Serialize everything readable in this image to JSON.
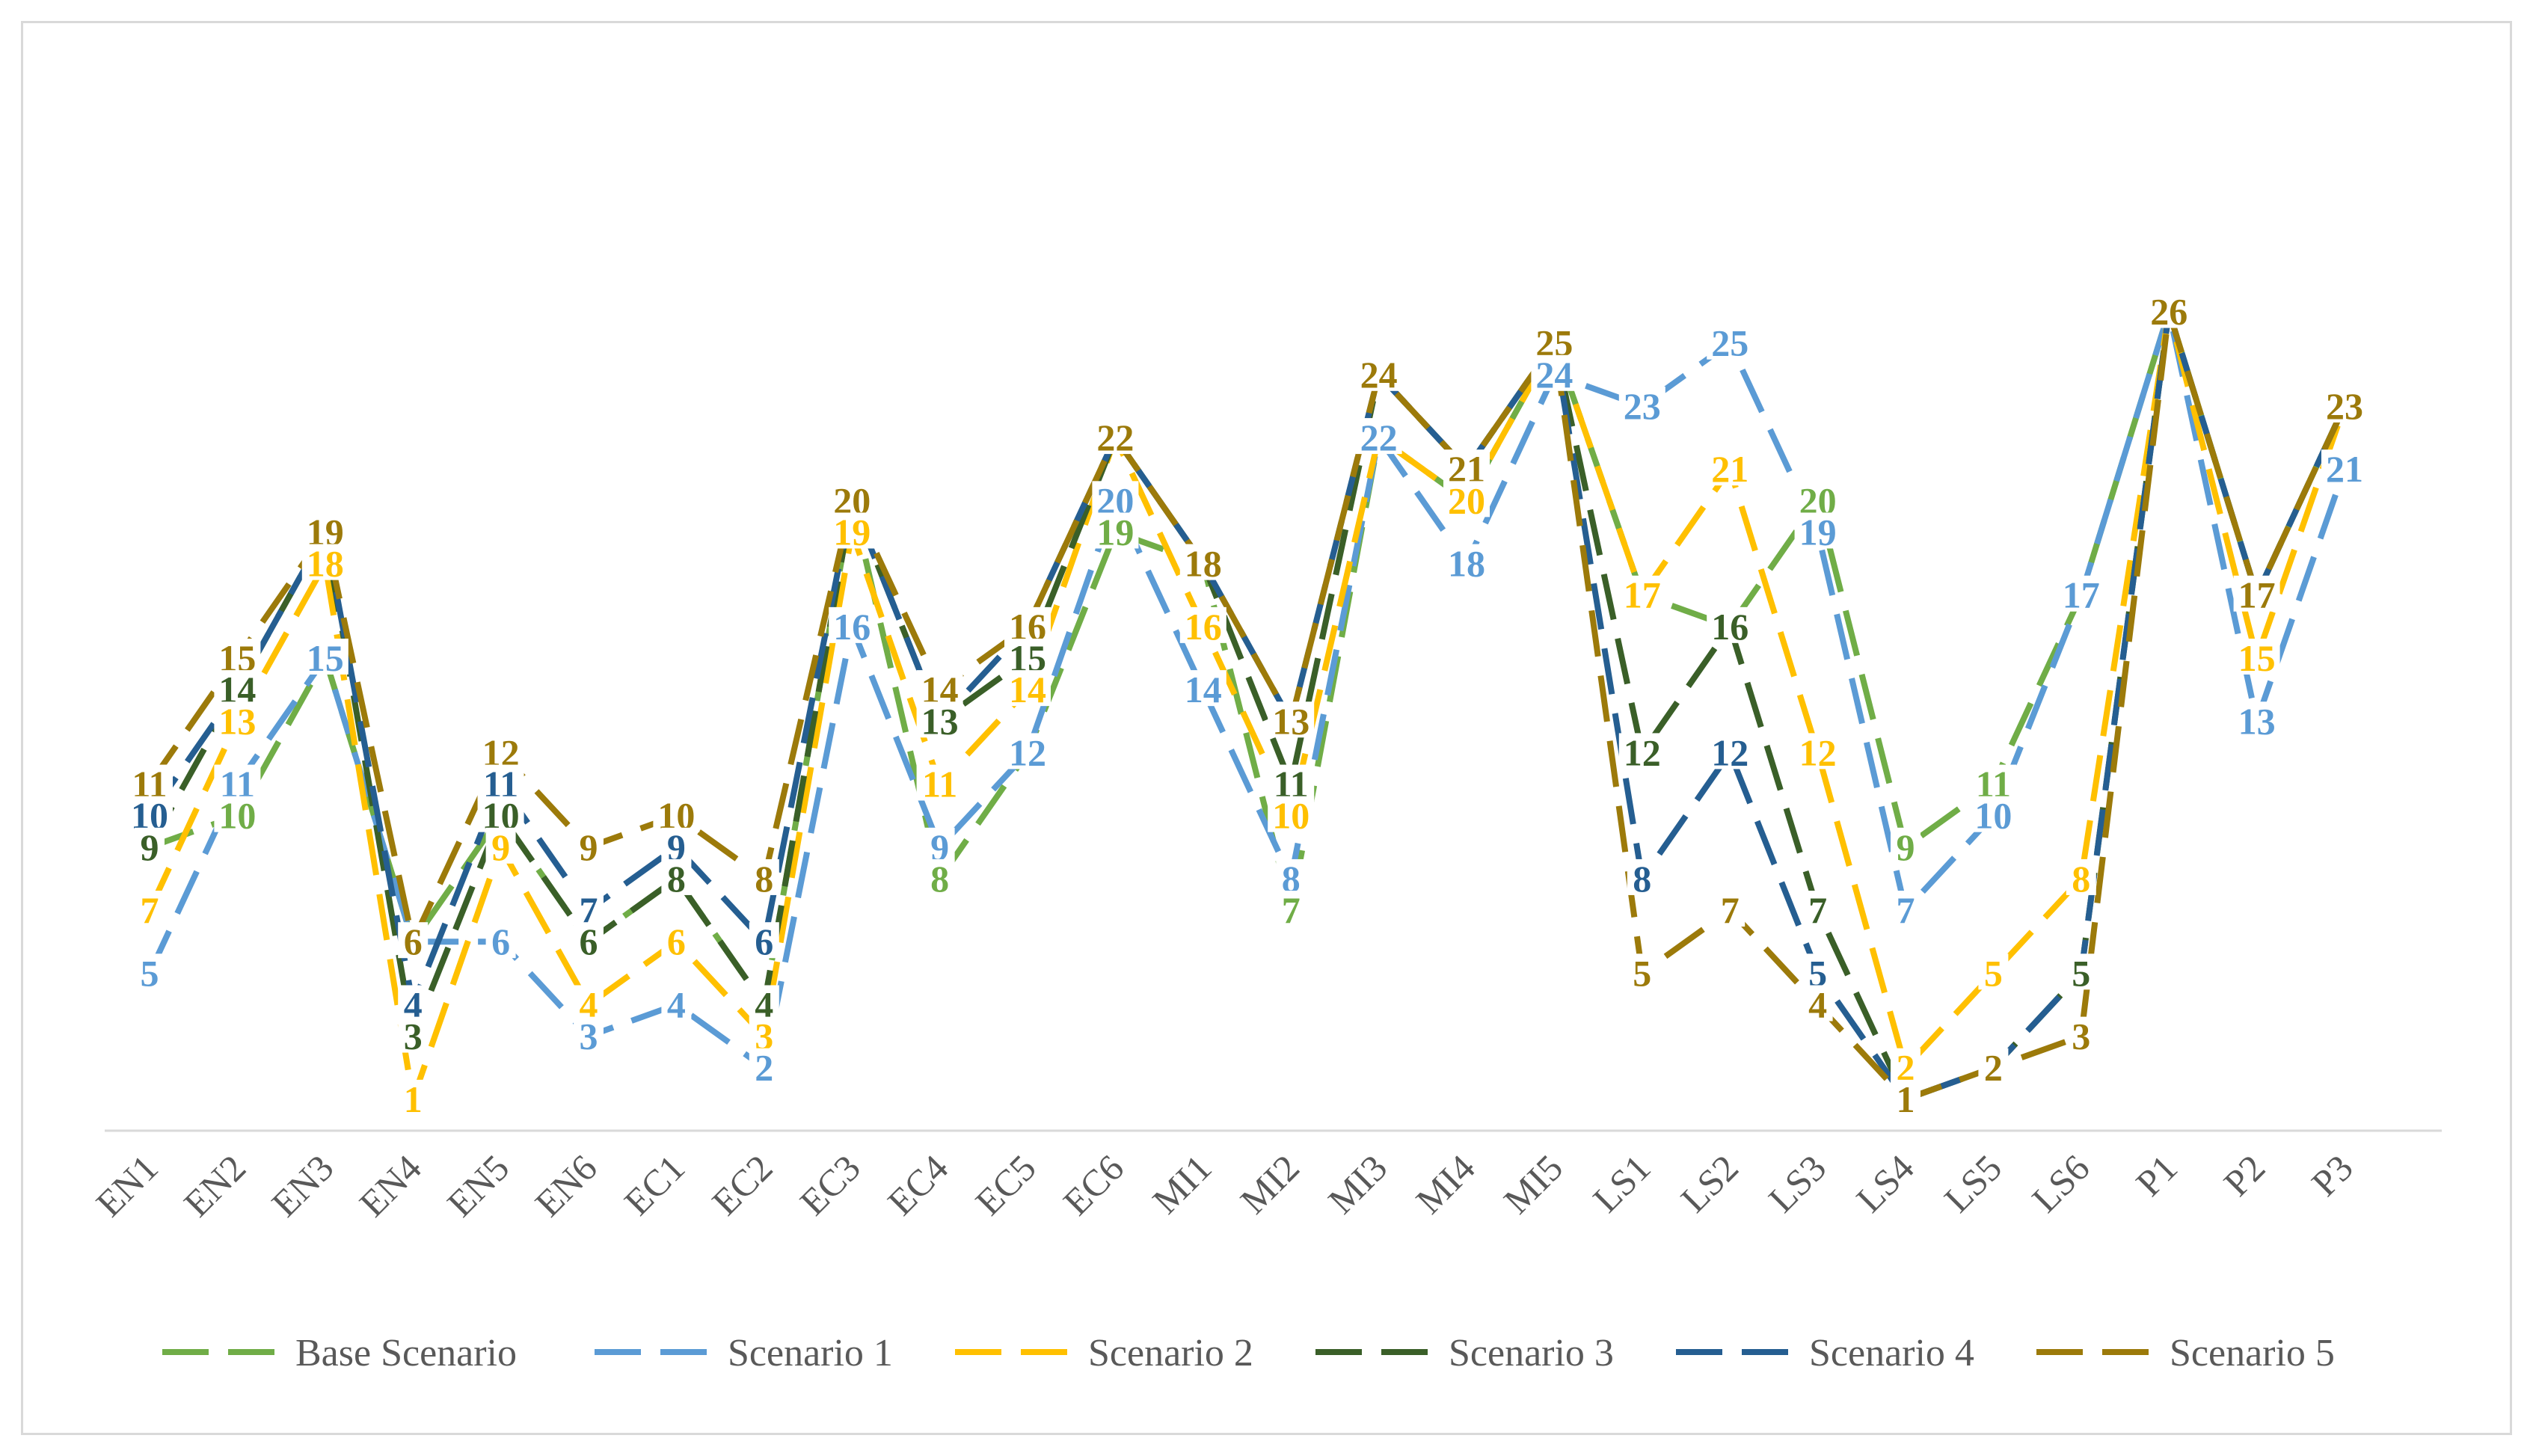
{
  "chart_data": {
    "type": "line",
    "title": "",
    "xlabel": "",
    "ylabel": "",
    "ylim": [
      0,
      30
    ],
    "grid": false,
    "legend_position": "bottom",
    "line_style": "dashed",
    "categories": [
      "EN1",
      "EN2",
      "EN3",
      "EN4",
      "EN5",
      "EN6",
      "EC1",
      "EC2",
      "EC3",
      "EC4",
      "EC5",
      "EC6",
      "MI1",
      "MI2",
      "MI3",
      "MI4",
      "MI5",
      "LS1",
      "LS2",
      "LS3",
      "LS4",
      "LS5",
      "LS6",
      "P1",
      "P2",
      "P3"
    ],
    "series": [
      {
        "name": "Base Scenario",
        "color": "#70ad47",
        "values": [
          9,
          10,
          15,
          6,
          10,
          6,
          8,
          4,
          20,
          8,
          12,
          19,
          18,
          7,
          22,
          20,
          25,
          17,
          16,
          20,
          9,
          11,
          17,
          26,
          17,
          23
        ]
      },
      {
        "name": "Scenario 1",
        "color": "#5b9bd5",
        "values": [
          5,
          11,
          15,
          6,
          6,
          3,
          4,
          2,
          16,
          9,
          12,
          20,
          14,
          8,
          22,
          18,
          24,
          23,
          25,
          19,
          7,
          10,
          17,
          26,
          13,
          21
        ]
      },
      {
        "name": "Scenario 2",
        "color": "#ffc000",
        "values": [
          7,
          13,
          18,
          1,
          9,
          4,
          6,
          3,
          19,
          11,
          14,
          22,
          16,
          10,
          22,
          20,
          25,
          17,
          21,
          12,
          2,
          5,
          8,
          26,
          15,
          23
        ]
      },
      {
        "name": "Scenario 3",
        "color": "#3a5f28",
        "values": [
          9,
          14,
          19,
          3,
          10,
          6,
          8,
          4,
          20,
          13,
          15,
          22,
          18,
          11,
          24,
          21,
          25,
          12,
          16,
          7,
          1,
          2,
          5,
          26,
          17,
          23
        ]
      },
      {
        "name": "Scenario 4",
        "color": "#255e91",
        "values": [
          10,
          14,
          19,
          4,
          11,
          7,
          9,
          6,
          20,
          13,
          16,
          22,
          18,
          13,
          24,
          21,
          25,
          8,
          12,
          5,
          1,
          2,
          5,
          26,
          17,
          23
        ]
      },
      {
        "name": "Scenario 5",
        "color": "#9c7a0a",
        "values": [
          11,
          15,
          19,
          6,
          12,
          9,
          10,
          8,
          20,
          14,
          16,
          22,
          18,
          13,
          24,
          21,
          25,
          5,
          7,
          4,
          1,
          2,
          3,
          26,
          17,
          23
        ]
      }
    ],
    "data_labels": [
      {
        "category": "EN1",
        "series": "Scenario 5",
        "text": "11"
      },
      {
        "category": "EN1",
        "series": "Scenario 4",
        "text": "10"
      },
      {
        "category": "EN1",
        "series": "Scenario 3",
        "text": "9"
      },
      {
        "category": "EN1",
        "series": "Scenario 2",
        "text": "7"
      },
      {
        "category": "EN1",
        "series": "Scenario 1",
        "text": "5"
      },
      {
        "category": "EN2",
        "series": "Scenario 5",
        "text": "15"
      },
      {
        "category": "EN2",
        "series": "Scenario 3",
        "text": "14"
      },
      {
        "category": "EN2",
        "series": "Scenario 2",
        "text": "13"
      },
      {
        "category": "EN2",
        "series": "Scenario 1",
        "text": "11"
      },
      {
        "category": "EN2",
        "series": "Base Scenario",
        "text": "10"
      },
      {
        "category": "EN3",
        "series": "Scenario 5",
        "text": "19"
      },
      {
        "category": "EN3",
        "series": "Scenario 2",
        "text": "18"
      },
      {
        "category": "EN3",
        "series": "Scenario 1",
        "text": "15"
      },
      {
        "category": "EN4",
        "series": "Scenario 5",
        "text": "6"
      },
      {
        "category": "EN4",
        "series": "Scenario 4",
        "text": "4"
      },
      {
        "category": "EN4",
        "series": "Scenario 3",
        "text": "3"
      },
      {
        "category": "EN4",
        "series": "Scenario 2",
        "text": "1"
      },
      {
        "category": "EN5",
        "series": "Scenario 5",
        "text": "12"
      },
      {
        "category": "EN5",
        "series": "Scenario 4",
        "text": "11"
      },
      {
        "category": "EN5",
        "series": "Scenario 3",
        "text": "10"
      },
      {
        "category": "EN5",
        "series": "Scenario 2",
        "text": "9"
      },
      {
        "category": "EN5",
        "series": "Scenario 1",
        "text": "6"
      },
      {
        "category": "EN6",
        "series": "Scenario 5",
        "text": "9"
      },
      {
        "category": "EN6",
        "series": "Scenario 4",
        "text": "7"
      },
      {
        "category": "EN6",
        "series": "Scenario 3",
        "text": "6"
      },
      {
        "category": "EN6",
        "series": "Scenario 2",
        "text": "4"
      },
      {
        "category": "EN6",
        "series": "Scenario 1",
        "text": "3"
      },
      {
        "category": "EC1",
        "series": "Scenario 5",
        "text": "10"
      },
      {
        "category": "EC1",
        "series": "Scenario 4",
        "text": "9"
      },
      {
        "category": "EC1",
        "series": "Scenario 3",
        "text": "8"
      },
      {
        "category": "EC1",
        "series": "Scenario 2",
        "text": "6"
      },
      {
        "category": "EC1",
        "series": "Scenario 1",
        "text": "4"
      },
      {
        "category": "EC2",
        "series": "Scenario 5",
        "text": "8"
      },
      {
        "category": "EC2",
        "series": "Scenario 4",
        "text": "6"
      },
      {
        "category": "EC2",
        "series": "Scenario 3",
        "text": "4"
      },
      {
        "category": "EC2",
        "series": "Scenario 2",
        "text": "3"
      },
      {
        "category": "EC2",
        "series": "Scenario 1",
        "text": "2"
      },
      {
        "category": "EC3",
        "series": "Scenario 5",
        "text": "20"
      },
      {
        "category": "EC3",
        "series": "Scenario 2",
        "text": "19"
      },
      {
        "category": "EC3",
        "series": "Scenario 1",
        "text": "16"
      },
      {
        "category": "EC4",
        "series": "Scenario 5",
        "text": "14"
      },
      {
        "category": "EC4",
        "series": "Scenario 3",
        "text": "13"
      },
      {
        "category": "EC4",
        "series": "Scenario 2",
        "text": "11"
      },
      {
        "category": "EC4",
        "series": "Scenario 1",
        "text": "9"
      },
      {
        "category": "EC4",
        "series": "Base Scenario",
        "text": "8"
      },
      {
        "category": "EC5",
        "series": "Scenario 5",
        "text": "16"
      },
      {
        "category": "EC5",
        "series": "Scenario 3",
        "text": "15"
      },
      {
        "category": "EC5",
        "series": "Scenario 2",
        "text": "14"
      },
      {
        "category": "EC5",
        "series": "Scenario 1",
        "text": "12"
      },
      {
        "category": "EC6",
        "series": "Scenario 5",
        "text": "22"
      },
      {
        "category": "EC6",
        "series": "Scenario 1",
        "text": "20"
      },
      {
        "category": "EC6",
        "series": "Base Scenario",
        "text": "19"
      },
      {
        "category": "MI1",
        "series": "Scenario 5",
        "text": "18"
      },
      {
        "category": "MI1",
        "series": "Scenario 2",
        "text": "16"
      },
      {
        "category": "MI1",
        "series": "Scenario 1",
        "text": "14"
      },
      {
        "category": "MI2",
        "series": "Scenario 5",
        "text": "13"
      },
      {
        "category": "MI2",
        "series": "Scenario 3",
        "text": "11"
      },
      {
        "category": "MI2",
        "series": "Scenario 2",
        "text": "10"
      },
      {
        "category": "MI2",
        "series": "Scenario 1",
        "text": "8"
      },
      {
        "category": "MI2",
        "series": "Base Scenario",
        "text": "7"
      },
      {
        "category": "MI3",
        "series": "Scenario 5",
        "text": "24"
      },
      {
        "category": "MI3",
        "series": "Scenario 1",
        "text": "22"
      },
      {
        "category": "MI4",
        "series": "Scenario 5",
        "text": "21"
      },
      {
        "category": "MI4",
        "series": "Scenario 2",
        "text": "20"
      },
      {
        "category": "MI4",
        "series": "Scenario 1",
        "text": "18"
      },
      {
        "category": "MI5",
        "series": "Scenario 5",
        "text": "25"
      },
      {
        "category": "MI5",
        "series": "Scenario 1",
        "text": "24"
      },
      {
        "category": "LS1",
        "series": "Scenario 1",
        "text": "23"
      },
      {
        "category": "LS1",
        "series": "Scenario 2",
        "text": "17"
      },
      {
        "category": "LS1",
        "series": "Scenario 3",
        "text": "12"
      },
      {
        "category": "LS1",
        "series": "Scenario 4",
        "text": "8"
      },
      {
        "category": "LS1",
        "series": "Scenario 5",
        "text": "5"
      },
      {
        "category": "LS2",
        "series": "Scenario 1",
        "text": "25"
      },
      {
        "category": "LS2",
        "series": "Scenario 2",
        "text": "21"
      },
      {
        "category": "LS2",
        "series": "Scenario 3",
        "text": "16"
      },
      {
        "category": "LS2",
        "series": "Scenario 4",
        "text": "12"
      },
      {
        "category": "LS2",
        "series": "Scenario 5",
        "text": "7"
      },
      {
        "category": "LS3",
        "series": "Base Scenario",
        "text": "20"
      },
      {
        "category": "LS3",
        "series": "Scenario 1",
        "text": "19"
      },
      {
        "category": "LS3",
        "series": "Scenario 2",
        "text": "12"
      },
      {
        "category": "LS3",
        "series": "Scenario 3",
        "text": "7"
      },
      {
        "category": "LS3",
        "series": "Scenario 4",
        "text": "5"
      },
      {
        "category": "LS3",
        "series": "Scenario 5",
        "text": "4"
      },
      {
        "category": "LS4",
        "series": "Base Scenario",
        "text": "9"
      },
      {
        "category": "LS4",
        "series": "Scenario 1",
        "text": "7"
      },
      {
        "category": "LS4",
        "series": "Scenario 2",
        "text": "2"
      },
      {
        "category": "LS4",
        "series": "Scenario 5",
        "text": "1"
      },
      {
        "category": "LS5",
        "series": "Base Scenario",
        "text": "11"
      },
      {
        "category": "LS5",
        "series": "Scenario 1",
        "text": "10"
      },
      {
        "category": "LS5",
        "series": "Scenario 2",
        "text": "5"
      },
      {
        "category": "LS5",
        "series": "Scenario 5",
        "text": "2"
      },
      {
        "category": "LS6",
        "series": "Scenario 1",
        "text": "17"
      },
      {
        "category": "LS6",
        "series": "Scenario 2",
        "text": "8"
      },
      {
        "category": "LS6",
        "series": "Scenario 3",
        "text": "5"
      },
      {
        "category": "LS6",
        "series": "Scenario 5",
        "text": "3"
      },
      {
        "category": "P1",
        "series": "Scenario 5",
        "text": "26"
      },
      {
        "category": "P2",
        "series": "Scenario 5",
        "text": "17"
      },
      {
        "category": "P2",
        "series": "Scenario 2",
        "text": "15"
      },
      {
        "category": "P2",
        "series": "Scenario 1",
        "text": "13"
      },
      {
        "category": "P3",
        "series": "Scenario 5",
        "text": "23"
      },
      {
        "category": "P3",
        "series": "Scenario 1",
        "text": "21"
      }
    ]
  }
}
